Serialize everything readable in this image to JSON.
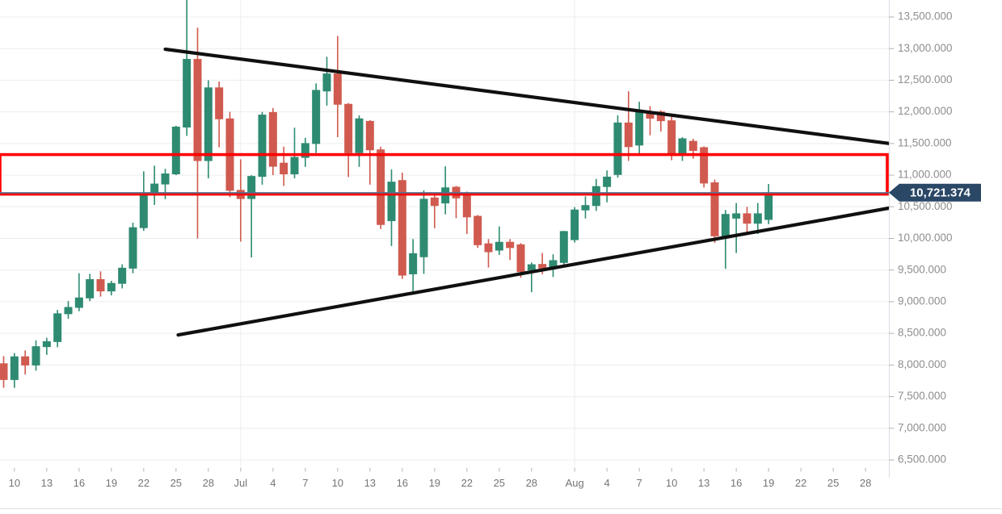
{
  "price_badge": {
    "text": "10,721.374",
    "value": 10721.374
  },
  "colors": {
    "background": "#ffffff",
    "grid": "#ededed",
    "axis_border": "#d9dde3",
    "tick_mark": "#b3b3b3",
    "y_label": "#8e8e8e",
    "x_label": "#757575",
    "candle_up": "#2e8b72",
    "candle_down": "#d05a4f",
    "trendline": "#101010",
    "range_box": "#fe0000",
    "price_line": "#53718f",
    "badge_bg": "#2a4766",
    "badge_text": "#ffffff",
    "separator": "#dfdfdf"
  },
  "y_axis": {
    "max": 13500,
    "min": 6500,
    "step": 500,
    "labels": [
      "13,500.000",
      "13,000.000",
      "12,500.000",
      "12,000.000",
      "11,500.000",
      "11,000.000",
      "10,500.000",
      "10,000.000",
      "9,500.000",
      "9,000.000",
      "8,500.000",
      "8,000.000",
      "7,500.000",
      "7,000.000",
      "6,500.000"
    ]
  },
  "x_axis": {
    "ticks": [
      {
        "label": "10",
        "day": 1
      },
      {
        "label": "13",
        "day": 4
      },
      {
        "label": "16",
        "day": 7
      },
      {
        "label": "19",
        "day": 10
      },
      {
        "label": "22",
        "day": 13
      },
      {
        "label": "25",
        "day": 16
      },
      {
        "label": "28",
        "day": 19
      },
      {
        "label": "Jul",
        "day": 22
      },
      {
        "label": "4",
        "day": 25
      },
      {
        "label": "7",
        "day": 28
      },
      {
        "label": "10",
        "day": 31
      },
      {
        "label": "13",
        "day": 34
      },
      {
        "label": "16",
        "day": 37
      },
      {
        "label": "19",
        "day": 40
      },
      {
        "label": "22",
        "day": 43
      },
      {
        "label": "25",
        "day": 46
      },
      {
        "label": "28",
        "day": 49
      },
      {
        "label": "Aug",
        "day": 53
      },
      {
        "label": "4",
        "day": 56
      },
      {
        "label": "7",
        "day": 59
      },
      {
        "label": "10",
        "day": 62
      },
      {
        "label": "13",
        "day": 65
      },
      {
        "label": "16",
        "day": 68
      },
      {
        "label": "19",
        "day": 71
      },
      {
        "label": "22",
        "day": 74
      },
      {
        "label": "25",
        "day": 77
      },
      {
        "label": "28",
        "day": 80
      }
    ],
    "month_gridline_days": [
      22,
      53
    ]
  },
  "chart_data": {
    "type": "candlestick",
    "candle_format": [
      "date",
      "open",
      "high",
      "low",
      "close"
    ],
    "candles": [
      [
        "Jun 9",
        8020,
        8140,
        7640,
        7770
      ],
      [
        "Jun 10",
        7770,
        8190,
        7640,
        8130
      ],
      [
        "Jun 11",
        8130,
        8230,
        7850,
        8000
      ],
      [
        "Jun 12",
        8000,
        8390,
        7910,
        8290
      ],
      [
        "Jun 13",
        8290,
        8430,
        8160,
        8370
      ],
      [
        "Jun 14",
        8370,
        8870,
        8280,
        8810
      ],
      [
        "Jun 15",
        8810,
        9010,
        8730,
        8910
      ],
      [
        "Jun 16",
        8910,
        9450,
        8850,
        9060
      ],
      [
        "Jun 17",
        9060,
        9440,
        9010,
        9350
      ],
      [
        "Jun 18",
        9350,
        9480,
        9080,
        9170
      ],
      [
        "Jun 19",
        9170,
        9330,
        9100,
        9290
      ],
      [
        "Jun 20",
        9290,
        9590,
        9210,
        9530
      ],
      [
        "Jun 21",
        9530,
        10250,
        9450,
        10170
      ],
      [
        "Jun 22",
        10170,
        11060,
        10120,
        10690
      ],
      [
        "Jun 23",
        10690,
        11150,
        10530,
        10860
      ],
      [
        "Jun 24",
        10860,
        11100,
        10620,
        11020
      ],
      [
        "Jun 25",
        11020,
        11780,
        11000,
        11760
      ],
      [
        "Jun 26",
        11760,
        13880,
        11620,
        12830
      ],
      [
        "Jun 27",
        12830,
        13330,
        10000,
        11230
      ],
      [
        "Jun 28",
        11230,
        12500,
        10950,
        12380
      ],
      [
        "Jun 29",
        12380,
        12480,
        11440,
        11890
      ],
      [
        "Jun 30",
        11890,
        12000,
        10650,
        10760
      ],
      [
        "Jul 1",
        10760,
        11250,
        9950,
        10630
      ],
      [
        "Jul 2",
        10630,
        11000,
        9700,
        10980
      ],
      [
        "Jul 3",
        10980,
        12000,
        10850,
        11950
      ],
      [
        "Jul 4",
        11990,
        12060,
        11000,
        11140
      ],
      [
        "Jul 5",
        11190,
        11450,
        10830,
        11020
      ],
      [
        "Jul 6",
        11020,
        11750,
        10950,
        11280
      ],
      [
        "Jul 7",
        11280,
        11590,
        11130,
        11500
      ],
      [
        "Jul 8",
        11500,
        12450,
        11350,
        12340
      ],
      [
        "Jul 9",
        12330,
        12870,
        12100,
        12600
      ],
      [
        "Jul 10",
        12600,
        13200,
        11600,
        12120
      ],
      [
        "Jul 11",
        12120,
        12140,
        10970,
        11355
      ],
      [
        "Jul 12",
        11355,
        11945,
        11130,
        11890
      ],
      [
        "Jul 13",
        11850,
        11870,
        10850,
        11400
      ],
      [
        "Jul 14",
        11400,
        11450,
        10150,
        10220
      ],
      [
        "Jul 15",
        10280,
        11090,
        9880,
        10890
      ],
      [
        "Jul 16",
        10915,
        11040,
        9360,
        9420
      ],
      [
        "Jul 17",
        9440,
        9990,
        9150,
        9760
      ],
      [
        "Jul 18",
        9710,
        10760,
        9440,
        10620
      ],
      [
        "Jul 19",
        10640,
        10700,
        10160,
        10520
      ],
      [
        "Jul 20",
        10560,
        11140,
        10380,
        10800
      ],
      [
        "Jul 21",
        10810,
        10830,
        10320,
        10640
      ],
      [
        "Jul 22",
        10700,
        10740,
        10070,
        10340
      ],
      [
        "Jul 23",
        10350,
        10370,
        9850,
        9900
      ],
      [
        "Jul 24",
        9915,
        9990,
        9540,
        9790
      ],
      [
        "Jul 25",
        9815,
        10190,
        9740,
        9940
      ],
      [
        "Jul 26",
        9940,
        9990,
        9660,
        9855
      ],
      [
        "Jul 27",
        9900,
        9925,
        9380,
        9475
      ],
      [
        "Jul 28",
        9500,
        9620,
        9150,
        9585
      ],
      [
        "Jul 29",
        9590,
        9770,
        9435,
        9530
      ],
      [
        "Jul 30",
        9530,
        9750,
        9390,
        9650
      ],
      [
        "Jul 31",
        9620,
        10120,
        9580,
        10110
      ],
      [
        "Aug 1",
        9980,
        10495,
        9935,
        10450
      ],
      [
        "Aug 2",
        10450,
        10665,
        10315,
        10520
      ],
      [
        "Aug 3",
        10520,
        10940,
        10435,
        10820
      ],
      [
        "Aug 4",
        10820,
        11075,
        10570,
        10970
      ],
      [
        "Aug 5",
        11010,
        11945,
        10960,
        11825
      ],
      [
        "Aug 6",
        11825,
        12325,
        11225,
        11450
      ],
      [
        "Aug 7",
        11475,
        12160,
        11305,
        12000
      ],
      [
        "Aug 8",
        12000,
        12090,
        11630,
        11900
      ],
      [
        "Aug 9",
        12000,
        12025,
        11690,
        11860
      ],
      [
        "Aug 10",
        11860,
        11920,
        11235,
        11350
      ],
      [
        "Aug 11",
        11350,
        11600,
        11225,
        11575
      ],
      [
        "Aug 12",
        11535,
        11575,
        11260,
        11390
      ],
      [
        "Aug 13",
        11435,
        11455,
        10805,
        10875
      ],
      [
        "Aug 14",
        10880,
        10930,
        9930,
        10040
      ],
      [
        "Aug 15",
        10040,
        10450,
        9520,
        10380
      ],
      [
        "Aug 16",
        10320,
        10560,
        9770,
        10390
      ],
      [
        "Aug 17",
        10390,
        10500,
        10080,
        10240
      ],
      [
        "Aug 18",
        10240,
        10560,
        10070,
        10390
      ],
      [
        "Aug 19",
        10300,
        10860,
        10225,
        10721
      ]
    ],
    "annotations": {
      "symmetrical_triangle": {
        "upper_trendline": {
          "from_day": 15.0,
          "from_price": 12990,
          "to_day": 82.2,
          "to_price": 11500
        },
        "lower_trendline": {
          "from_day": 16.2,
          "from_price": 8475,
          "to_day": 82.2,
          "to_price": 10480
        }
      },
      "range_box": {
        "price_top": 11325,
        "price_bottom": 10700
      },
      "current_price_line": {
        "price": 10721.374
      }
    },
    "title": "",
    "legend": "none",
    "grid": "on"
  }
}
